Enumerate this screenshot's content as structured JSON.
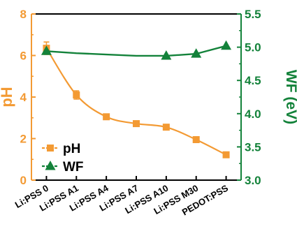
{
  "chart_data": {
    "type": "line",
    "title": "",
    "categories": [
      "Li:PSS 0",
      "Li:PSS A1",
      "Li:PSS A4",
      "Li:PSS A7",
      "Li:PSS A10",
      "Li:PSS M30",
      "PEDOT:PSS"
    ],
    "xlabel": "",
    "ylabel_left": "pH",
    "ylabel_right": "WF (eV)",
    "ylim_left": [
      0,
      8
    ],
    "yticks_left": [
      "0",
      "2",
      "4",
      "6",
      "8"
    ],
    "ylim_right": [
      3.0,
      5.5
    ],
    "yticks_right": [
      "3.0",
      "3.5",
      "4.0",
      "4.5",
      "5.0",
      "5.5"
    ],
    "grid": false,
    "legend_position": "bottom-left",
    "series": [
      {
        "name": "pH",
        "axis": "left",
        "color": "#f39a33",
        "marker": "square",
        "values": [
          6.35,
          4.1,
          3.05,
          2.72,
          2.55,
          1.95,
          1.22
        ],
        "error": [
          0.3,
          0.2,
          0.08,
          0.06,
          0.08,
          0.06,
          0.06
        ]
      },
      {
        "name": "WF",
        "axis": "right",
        "color": "#13823a",
        "marker": "triangle",
        "values": [
          4.94,
          null,
          null,
          null,
          4.87,
          4.9,
          5.02
        ],
        "line_values": [
          4.94,
          4.91,
          4.89,
          4.87,
          4.87,
          4.9,
          5.02
        ]
      }
    ]
  }
}
